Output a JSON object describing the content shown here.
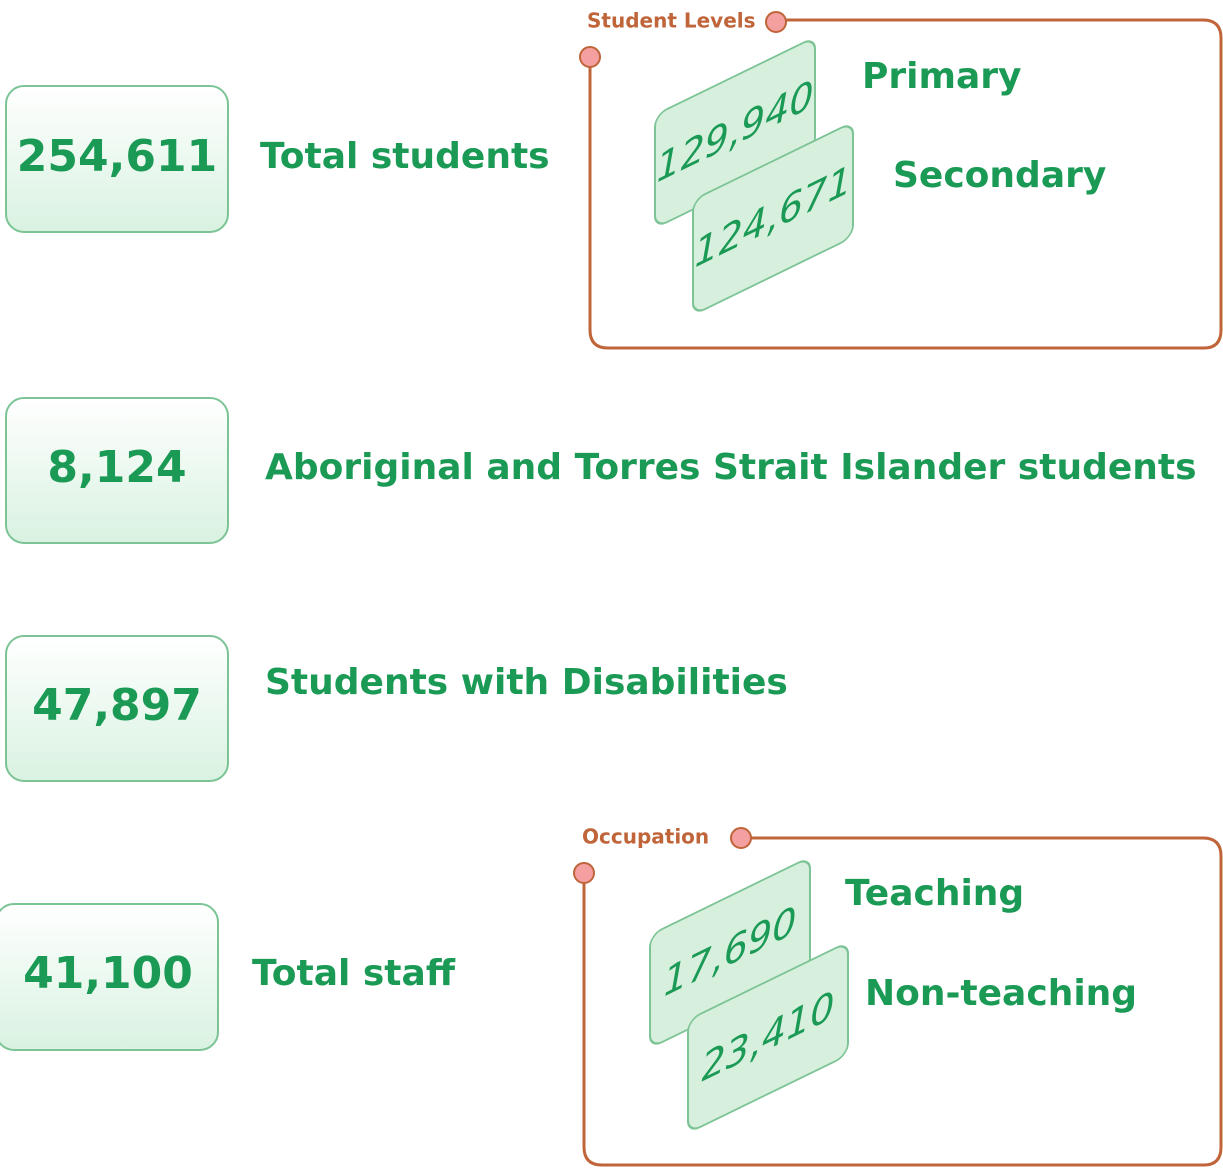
{
  "stats": [
    {
      "value": "254,611",
      "label": "Total students"
    },
    {
      "value": "8,124",
      "label": "Aboriginal and Torres Strait Islander students"
    },
    {
      "value": "47,897",
      "label": "Students with Disabilities"
    },
    {
      "value": "41,100",
      "label": "Total staff"
    }
  ],
  "groups": [
    {
      "title": "Student Levels",
      "items": [
        {
          "value": "129,940",
          "label": "Primary"
        },
        {
          "value": "124,671",
          "label": "Secondary"
        }
      ]
    },
    {
      "title": "Occupation",
      "items": [
        {
          "value": "17,690",
          "label": "Teaching"
        },
        {
          "value": "23,410",
          "label": "Non-teaching"
        }
      ]
    }
  ]
}
